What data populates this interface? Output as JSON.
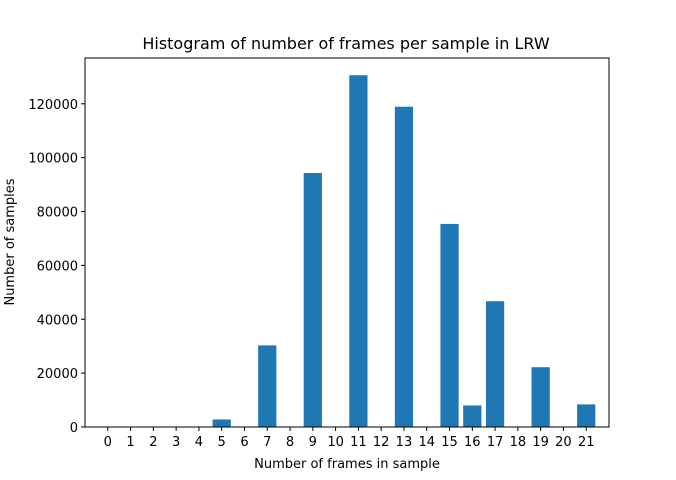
{
  "chart_data": {
    "type": "bar",
    "title": "Histogram of number of frames per sample in LRW",
    "xlabel": "Number of frames in sample",
    "ylabel": "Number of samples",
    "categories": [
      "0",
      "1",
      "2",
      "3",
      "4",
      "5",
      "6",
      "7",
      "8",
      "9",
      "10",
      "11",
      "12",
      "13",
      "14",
      "15",
      "16",
      "17",
      "18",
      "19",
      "20",
      "21"
    ],
    "values": [
      0,
      0,
      0,
      0,
      0,
      2800,
      0,
      30300,
      0,
      94300,
      0,
      130600,
      0,
      118900,
      0,
      75400,
      8000,
      46700,
      0,
      22200,
      0,
      8400
    ],
    "xlim": [
      -1,
      22
    ],
    "ylim": [
      0,
      137000
    ],
    "yticks": [
      0,
      20000,
      40000,
      60000,
      80000,
      100000,
      120000
    ],
    "bar_color": "#1f77b4",
    "grid": false,
    "legend": "none"
  }
}
